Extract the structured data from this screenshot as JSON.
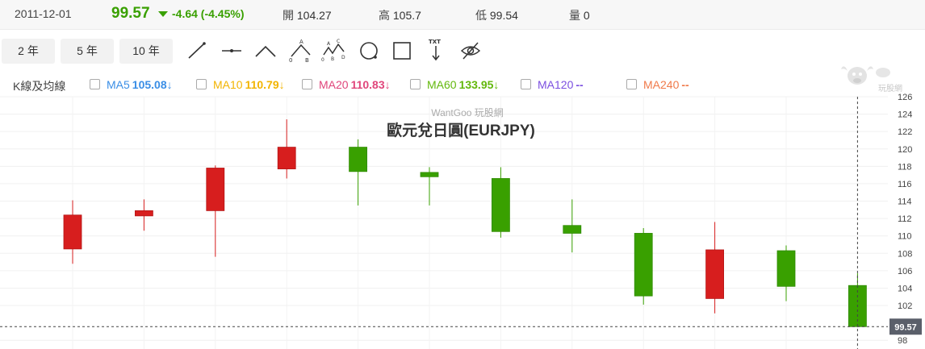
{
  "header": {
    "date": "2011-12-01",
    "close": "99.57",
    "change": "-4.64 (-4.45%)",
    "open_label": "開",
    "open": "104.27",
    "high_label": "高",
    "high": "105.7",
    "low_label": "低",
    "low": "99.54",
    "volume_label": "量",
    "volume": "0",
    "up_color": "#d71e1e",
    "down_color": "#39a000"
  },
  "toolbar": {
    "range_buttons": [
      "2 年",
      "5 年",
      "10 年"
    ],
    "tools": [
      "line-tool-icon",
      "horizontal-line-tool-icon",
      "angle-tool-icon",
      "abc-pattern-icon",
      "abcd-pattern-icon",
      "circle-tool-icon",
      "rectangle-tool-icon",
      "text-tool-icon",
      "hide-eye-icon"
    ],
    "tool_letters": {
      "a": "A",
      "b": "B",
      "c": "C",
      "d": "D",
      "o": "0",
      "txt": "TXT"
    }
  },
  "ma": {
    "label": "K線及均線",
    "items": [
      {
        "name": "MA5",
        "value": "105.08",
        "arrow": "↓",
        "color": "#3a8ee6"
      },
      {
        "name": "MA10",
        "value": "110.79",
        "arrow": "↓",
        "color": "#f2b400"
      },
      {
        "name": "MA20",
        "value": "110.83",
        "arrow": "↓",
        "color": "#e0457b"
      },
      {
        "name": "MA60",
        "value": "133.95",
        "arrow": "↓",
        "color": "#63b80d"
      },
      {
        "name": "MA120",
        "value": "--",
        "arrow": "",
        "color": "#7b4fe0"
      },
      {
        "name": "MA240",
        "value": "--",
        "arrow": "",
        "color": "#f07a4a"
      }
    ]
  },
  "brand": {
    "logo_text": "玩股網"
  },
  "chart_data": {
    "type": "candlestick",
    "watermark": "WantGoo 玩股網",
    "title": "歐元兌日圓(EURJPY)",
    "ylim": [
      97,
      126
    ],
    "y_ticks": [
      98,
      102,
      104,
      106,
      108,
      110,
      112,
      114,
      116,
      118,
      120,
      122,
      124,
      126
    ],
    "last_price": 99.57,
    "last_price_label": "99.57",
    "candles": [
      {
        "open": 108.5,
        "high": 114.1,
        "low": 106.8,
        "close": 112.4
      },
      {
        "open": 112.3,
        "high": 114.2,
        "low": 110.6,
        "close": 112.9
      },
      {
        "open": 112.9,
        "high": 118.1,
        "low": 107.6,
        "close": 117.8
      },
      {
        "open": 117.7,
        "high": 123.4,
        "low": 116.6,
        "close": 120.2
      },
      {
        "open": 120.2,
        "high": 121.1,
        "low": 113.5,
        "close": 117.4
      },
      {
        "open": 117.3,
        "high": 117.9,
        "low": 113.5,
        "close": 116.8
      },
      {
        "open": 116.6,
        "high": 117.9,
        "low": 109.8,
        "close": 110.5
      },
      {
        "open": 111.2,
        "high": 114.2,
        "low": 108.1,
        "close": 110.3
      },
      {
        "open": 110.3,
        "high": 110.9,
        "low": 102.1,
        "close": 103.1
      },
      {
        "open": 102.8,
        "high": 111.6,
        "low": 101.1,
        "close": 108.4
      },
      {
        "open": 108.3,
        "high": 108.9,
        "low": 102.5,
        "close": 104.2
      },
      {
        "open": 104.3,
        "high": 105.7,
        "low": 99.54,
        "close": 99.57
      }
    ]
  }
}
